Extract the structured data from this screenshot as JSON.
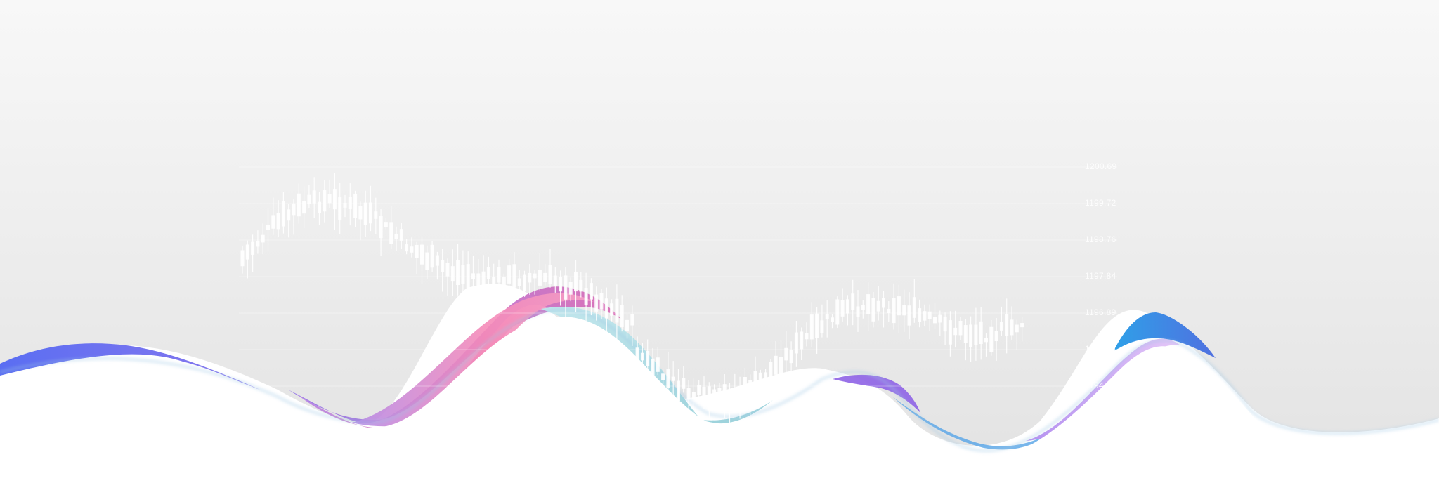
{
  "banner": {
    "price_axis": [
      "1200.69",
      "1199.72",
      "1198.76",
      "1197.84",
      "1196.89",
      "1195.94",
      "1194.99"
    ]
  },
  "colors": {
    "background_top": "#f8f8f8",
    "background_bottom": "#e6e6e6",
    "candles": "#ffffff",
    "band_violet": "#6a6ef0",
    "band_pink": "#f58ab8",
    "band_magenta": "#b05fcf",
    "band_teal": "#a6d9e0",
    "band_blue": "#3f7fe0",
    "band_lilac": "#dcbaf5"
  }
}
